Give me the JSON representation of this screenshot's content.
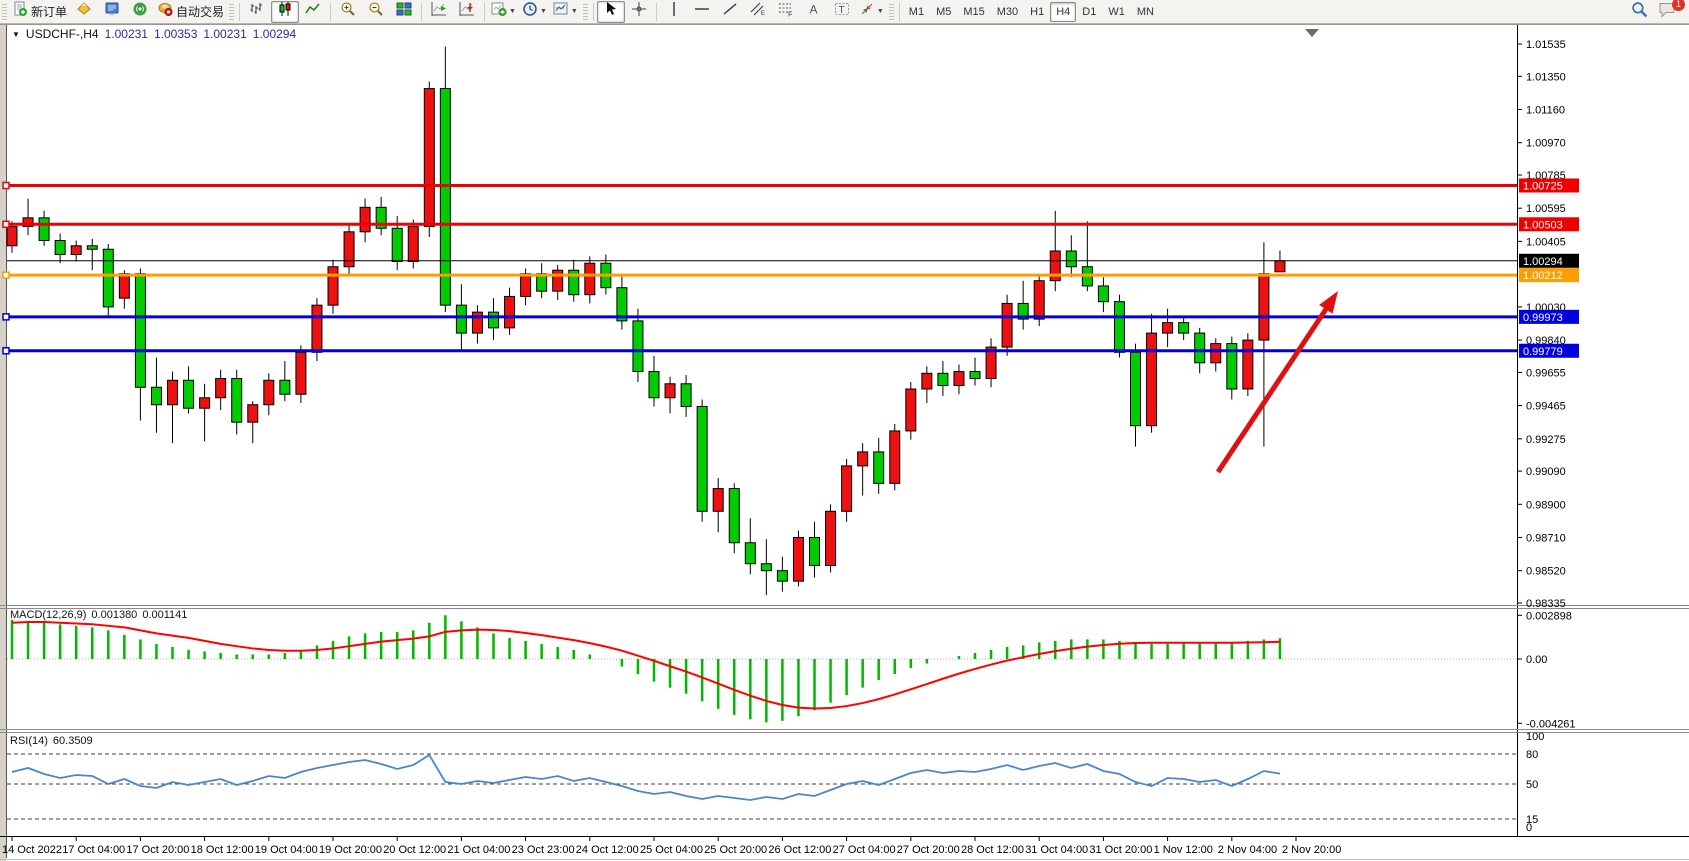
{
  "toolbar": {
    "new_order_label": "新订单",
    "auto_trading_label": "自动交易",
    "timeframes": [
      "M1",
      "M5",
      "M15",
      "M30",
      "H1",
      "H4",
      "D1",
      "W1",
      "MN"
    ],
    "active_timeframe": "H4",
    "chat_badge": "1"
  },
  "chart_data": {
    "type": "candlestick",
    "symbol": "USDCHF-",
    "timeframe": "H4",
    "title": {
      "symbol_period": "USDCHF-,H4",
      "open": "1.00231",
      "high": "1.00353",
      "low": "1.00231",
      "close": "1.00294"
    },
    "price_axis": {
      "top_price": 1.01535,
      "bottom_price": 0.98335,
      "ticks": [
        "1.01535",
        "1.01350",
        "1.01160",
        "1.00970",
        "1.00785",
        "1.00595",
        "1.00405",
        "1.00030",
        "0.99840",
        "0.99655",
        "0.99465",
        "0.99275",
        "0.99090",
        "0.98900",
        "0.98710",
        "0.98520",
        "0.98335"
      ]
    },
    "colors": {
      "up": "#ee1111",
      "down": "#00cc00",
      "wick": "#000000"
    },
    "candles": [
      [
        1.0038,
        1.0052,
        1.0034,
        1.0049
      ],
      [
        1.0049,
        1.0065,
        1.0044,
        1.0054
      ],
      [
        1.0054,
        1.0058,
        1.0038,
        1.0041
      ],
      [
        1.0041,
        1.0045,
        1.0028,
        1.0033
      ],
      [
        1.0033,
        1.0041,
        1.0029,
        1.0038
      ],
      [
        1.0038,
        1.0042,
        1.0024,
        1.0036
      ],
      [
        1.0036,
        1.0039,
        0.9998,
        1.0003
      ],
      [
        1.0008,
        1.0024,
        1.0002,
        1.0022
      ],
      [
        1.0022,
        1.0025,
        0.9938,
        0.9957
      ],
      [
        0.9957,
        0.9974,
        0.9931,
        0.9947
      ],
      [
        0.9947,
        0.9966,
        0.9925,
        0.9961
      ],
      [
        0.9961,
        0.9969,
        0.9942,
        0.9945
      ],
      [
        0.9945,
        0.9959,
        0.9926,
        0.9951
      ],
      [
        0.9951,
        0.9967,
        0.9944,
        0.9962
      ],
      [
        0.9962,
        0.9967,
        0.993,
        0.9937
      ],
      [
        0.9937,
        0.9949,
        0.9925,
        0.9947
      ],
      [
        0.9947,
        0.9965,
        0.9941,
        0.9961
      ],
      [
        0.9961,
        0.9972,
        0.9949,
        0.9953
      ],
      [
        0.9953,
        0.9981,
        0.9948,
        0.9977
      ],
      [
        0.9977,
        1.0008,
        0.9972,
        1.0004
      ],
      [
        1.0004,
        1.003,
        0.9999,
        1.0026
      ],
      [
        1.0026,
        1.005,
        1.0021,
        1.0046
      ],
      [
        1.0046,
        1.0065,
        1.004,
        1.006
      ],
      [
        1.006,
        1.0066,
        1.0044,
        1.0048
      ],
      [
        1.0048,
        1.0055,
        1.0024,
        1.0029
      ],
      [
        1.0029,
        1.0053,
        1.0025,
        1.0049
      ],
      [
        1.0049,
        1.0132,
        1.0043,
        1.0128
      ],
      [
        1.0128,
        1.0152,
        1.0,
        1.0004
      ],
      [
        1.0004,
        1.0016,
        0.9978,
        0.9988
      ],
      [
        0.9988,
        1.0004,
        0.9982,
        1.0
      ],
      [
        1.0,
        1.0008,
        0.9984,
        0.9991
      ],
      [
        0.9991,
        1.0014,
        0.9987,
        1.0009
      ],
      [
        1.0009,
        1.0025,
        1.0004,
        1.0022
      ],
      [
        1.0022,
        1.0028,
        1.0008,
        1.0012
      ],
      [
        1.0012,
        1.0027,
        1.0007,
        1.0024
      ],
      [
        1.0024,
        1.003,
        1.0006,
        1.001
      ],
      [
        1.001,
        1.0032,
        1.0005,
        1.0028
      ],
      [
        1.0028,
        1.0033,
        1.001,
        1.0014
      ],
      [
        1.0014,
        1.0022,
        0.999,
        0.9995
      ],
      [
        0.9995,
        1.0002,
        0.996,
        0.9966
      ],
      [
        0.9966,
        0.9975,
        0.9946,
        0.9951
      ],
      [
        0.9951,
        0.9963,
        0.9942,
        0.9959
      ],
      [
        0.9959,
        0.9964,
        0.994,
        0.9946
      ],
      [
        0.9946,
        0.995,
        0.988,
        0.9886
      ],
      [
        0.9886,
        0.9905,
        0.9874,
        0.9899
      ],
      [
        0.9899,
        0.9902,
        0.9862,
        0.9868
      ],
      [
        0.9868,
        0.9882,
        0.985,
        0.9856
      ],
      [
        0.9856,
        0.987,
        0.9838,
        0.9852
      ],
      [
        0.9852,
        0.986,
        0.984,
        0.9846
      ],
      [
        0.9846,
        0.9875,
        0.9843,
        0.9871
      ],
      [
        0.9871,
        0.988,
        0.9848,
        0.9855
      ],
      [
        0.9855,
        0.989,
        0.9851,
        0.9886
      ],
      [
        0.9886,
        0.9916,
        0.988,
        0.9912
      ],
      [
        0.9912,
        0.9925,
        0.9895,
        0.992
      ],
      [
        0.992,
        0.9928,
        0.9896,
        0.9902
      ],
      [
        0.9902,
        0.9936,
        0.9898,
        0.9932
      ],
      [
        0.9932,
        0.996,
        0.9927,
        0.9956
      ],
      [
        0.9956,
        0.9969,
        0.9948,
        0.9965
      ],
      [
        0.9965,
        0.9972,
        0.9952,
        0.9958
      ],
      [
        0.9958,
        0.997,
        0.9953,
        0.9966
      ],
      [
        0.9966,
        0.9974,
        0.9958,
        0.9962
      ],
      [
        0.9962,
        0.9985,
        0.9957,
        0.998
      ],
      [
        0.998,
        1.001,
        0.9975,
        1.0005
      ],
      [
        1.0005,
        1.0018,
        0.999,
        0.9996
      ],
      [
        0.9996,
        1.0022,
        0.9992,
        1.0018
      ],
      [
        1.0018,
        1.0058,
        1.0012,
        1.0035
      ],
      [
        1.0035,
        1.0044,
        1.002,
        1.0026
      ],
      [
        1.0026,
        1.0052,
        1.0012,
        1.0015
      ],
      [
        1.0015,
        1.002,
        1.0,
        1.0006
      ],
      [
        1.0006,
        1.001,
        0.9974,
        0.9977
      ],
      [
        0.9977,
        0.9982,
        0.9923,
        0.9935
      ],
      [
        0.9935,
        0.9999,
        0.9931,
        0.9988
      ],
      [
        0.9988,
        1.0002,
        0.998,
        0.9994
      ],
      [
        0.9994,
        0.9997,
        0.9984,
        0.9988
      ],
      [
        0.9988,
        0.9991,
        0.9965,
        0.9971
      ],
      [
        0.9971,
        0.9985,
        0.9966,
        0.9982
      ],
      [
        0.9982,
        0.9986,
        0.995,
        0.9956
      ],
      [
        0.9956,
        0.9988,
        0.9952,
        0.9984
      ],
      [
        0.9984,
        1.004,
        0.9923,
        1.0022
      ],
      [
        1.00231,
        1.00353,
        1.00231,
        1.00294
      ]
    ],
    "hlines": [
      {
        "price": 1.00725,
        "label": "1.00725",
        "color": "#ee0000"
      },
      {
        "price": 1.00503,
        "label": "1.00503",
        "color": "#ee0000"
      },
      {
        "price": 1.00212,
        "label": "1.00212",
        "color": "#ff9c00"
      },
      {
        "price": 0.99973,
        "label": "0.99973",
        "color": "#0000e0"
      },
      {
        "price": 0.99779,
        "label": "0.99779",
        "color": "#0000e0"
      }
    ],
    "current_price": {
      "price": 1.00294,
      "label": "1.00294",
      "color": "#000000"
    },
    "trend_arrow": {
      "from": [
        1218,
        472
      ],
      "tip": [
        1338,
        291
      ],
      "color": "#e01010"
    },
    "time_labels": [
      "14 Oct 2022",
      "17 Oct 04:00",
      "17 Oct 20:00",
      "18 Oct 12:00",
      "19 Oct 04:00",
      "19 Oct 20:00",
      "20 Oct 12:00",
      "21 Oct 04:00",
      "23 Oct 23:00",
      "24 Oct 12:00",
      "25 Oct 04:00",
      "25 Oct 20:00",
      "26 Oct 12:00",
      "27 Oct 04:00",
      "27 Oct 20:00",
      "28 Oct 12:00",
      "31 Oct 04:00",
      "31 Oct 20:00",
      "1 Nov 12:00",
      "2 Nov 04:00",
      "2 Nov 20:00"
    ],
    "macd": {
      "label": "MACD(12,26,9)",
      "value_main": "0.001380",
      "value_signal": "0.001141",
      "axis_max": "0.002898",
      "axis_zero": "0.00",
      "axis_min": "-0.004261",
      "hist_color": "#00b800",
      "signal_color": "#ff0000",
      "histogram": [
        0.0026,
        0.0025,
        0.0024,
        0.0023,
        0.0022,
        0.0021,
        0.0019,
        0.0016,
        0.0013,
        0.001,
        0.0008,
        0.0006,
        0.0005,
        0.0004,
        0.0003,
        0.0003,
        0.0003,
        0.0004,
        0.0006,
        0.0009,
        0.0012,
        0.0015,
        0.0017,
        0.0018,
        0.0018,
        0.0019,
        0.0024,
        0.0029,
        0.0025,
        0.0021,
        0.0017,
        0.0014,
        0.0012,
        0.001,
        0.0008,
        0.0006,
        0.0003,
        0.0,
        -0.0005,
        -0.001,
        -0.0015,
        -0.0019,
        -0.0023,
        -0.0028,
        -0.0033,
        -0.0037,
        -0.004,
        -0.0042,
        -0.0041,
        -0.0038,
        -0.0034,
        -0.0029,
        -0.0024,
        -0.0019,
        -0.0014,
        -0.001,
        -0.0006,
        -0.0003,
        0.0,
        0.0002,
        0.0004,
        0.0006,
        0.0008,
        0.0009,
        0.0011,
        0.0012,
        0.0013,
        0.0013,
        0.0013,
        0.0012,
        0.0011,
        0.001,
        0.001,
        0.0011,
        0.0011,
        0.0011,
        0.0011,
        0.0012,
        0.0013,
        0.00138
      ],
      "signal": [
        0.0024,
        0.00245,
        0.00245,
        0.0024,
        0.00235,
        0.0023,
        0.0022,
        0.0021,
        0.0019,
        0.0017,
        0.00155,
        0.0014,
        0.0012,
        0.001,
        0.00085,
        0.0007,
        0.0006,
        0.00055,
        0.00055,
        0.0006,
        0.0007,
        0.00085,
        0.001,
        0.00115,
        0.00125,
        0.00135,
        0.0015,
        0.0018,
        0.0019,
        0.00195,
        0.00192,
        0.00185,
        0.00172,
        0.00158,
        0.00142,
        0.00125,
        0.00105,
        0.00082,
        0.00055,
        0.00022,
        -0.00012,
        -0.00048,
        -0.00083,
        -0.00122,
        -0.00163,
        -0.00204,
        -0.00243,
        -0.00278,
        -0.00305,
        -0.00322,
        -0.00328,
        -0.00325,
        -0.00312,
        -0.00292,
        -0.00266,
        -0.00235,
        -0.00201,
        -0.00166,
        -0.00131,
        -0.00097,
        -0.00066,
        -0.00037,
        -0.00011,
        0.00012,
        0.00033,
        0.00052,
        0.00068,
        0.00082,
        0.00093,
        0.00101,
        0.00106,
        0.00108,
        0.00108,
        0.00108,
        0.00108,
        0.00108,
        0.00108,
        0.00109,
        0.00111,
        0.001141
      ]
    },
    "rsi": {
      "label": "RSI(14)",
      "value": "60.3509",
      "line_color": "#4a86c8",
      "axis_ticks": [
        "100",
        "80",
        "50",
        "15",
        "0"
      ],
      "dashed_levels": [
        80,
        50,
        15
      ],
      "series": [
        62,
        66,
        60,
        56,
        59,
        58,
        50,
        55,
        48,
        46,
        52,
        49,
        52,
        55,
        49,
        53,
        58,
        56,
        62,
        66,
        69,
        72,
        74,
        70,
        65,
        69,
        79,
        52,
        50,
        53,
        51,
        54,
        57,
        55,
        58,
        53,
        56,
        52,
        48,
        43,
        40,
        42,
        38,
        35,
        38,
        36,
        34,
        37,
        35,
        40,
        38,
        44,
        50,
        53,
        49,
        55,
        61,
        64,
        61,
        63,
        62,
        65,
        69,
        64,
        68,
        71,
        66,
        70,
        63,
        60,
        52,
        48,
        56,
        55,
        52,
        54,
        48,
        55,
        63,
        60.35
      ]
    }
  }
}
